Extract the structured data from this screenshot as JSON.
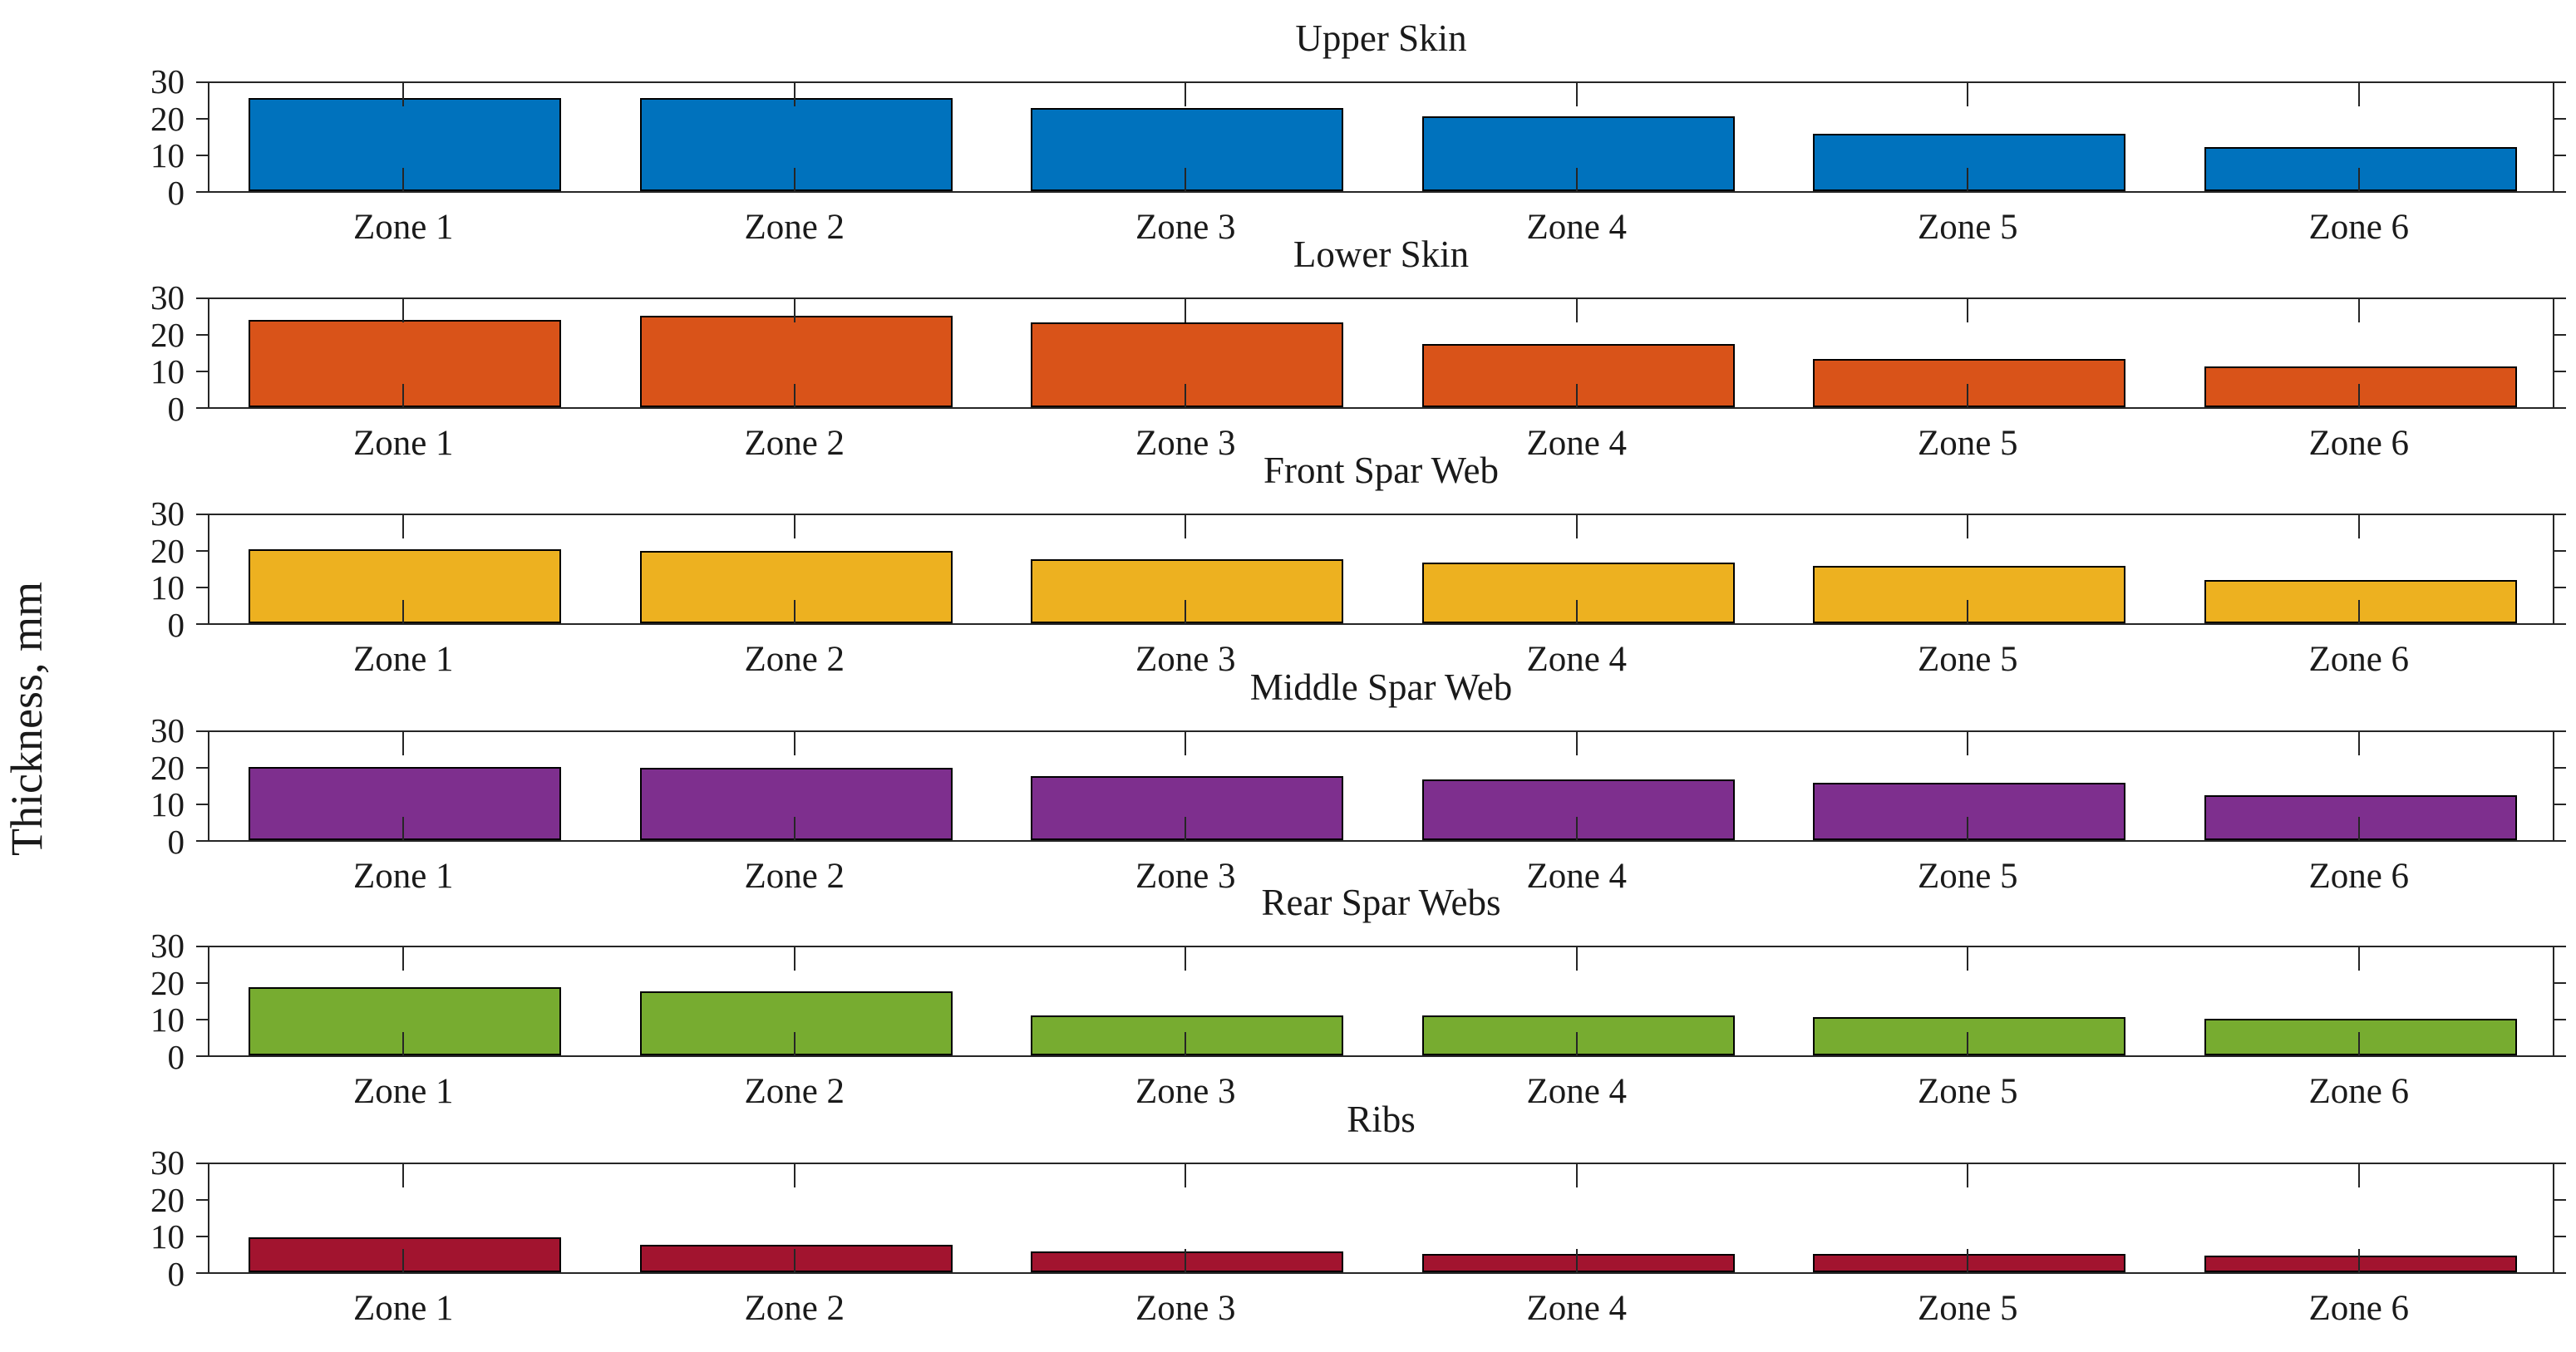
{
  "figure": {
    "ylabel": "Thickness, mm"
  },
  "chart_data": [
    {
      "type": "bar",
      "title": "Upper Skin",
      "categories": [
        "Zone 1",
        "Zone 2",
        "Zone 3",
        "Zone 4",
        "Zone 5",
        "Zone 6"
      ],
      "values": [
        25.5,
        25.5,
        22.7,
        20.4,
        15.6,
        12.0
      ],
      "color": "#0072BD",
      "xlabel": "",
      "ylabel": "",
      "ylim": [
        0,
        30
      ],
      "yticks": [
        0,
        10,
        20,
        30
      ],
      "grid": false,
      "legend": "none"
    },
    {
      "type": "bar",
      "title": "Lower Skin",
      "categories": [
        "Zone 1",
        "Zone 2",
        "Zone 3",
        "Zone 4",
        "Zone 5",
        "Zone 6"
      ],
      "values": [
        23.8,
        25.0,
        23.2,
        17.2,
        13.1,
        11.2
      ],
      "color": "#D95319",
      "xlabel": "",
      "ylabel": "",
      "ylim": [
        0,
        30
      ],
      "yticks": [
        0,
        10,
        20,
        30
      ],
      "grid": false,
      "legend": "none"
    },
    {
      "type": "bar",
      "title": "Front Spar Web",
      "categories": [
        "Zone 1",
        "Zone 2",
        "Zone 3",
        "Zone 4",
        "Zone 5",
        "Zone 6"
      ],
      "values": [
        20.3,
        19.7,
        17.6,
        16.5,
        15.6,
        11.9
      ],
      "color": "#EDB120",
      "xlabel": "",
      "ylabel": "",
      "ylim": [
        0,
        30
      ],
      "yticks": [
        0,
        10,
        20,
        30
      ],
      "grid": false,
      "legend": "none"
    },
    {
      "type": "bar",
      "title": "Middle Spar Web",
      "categories": [
        "Zone 1",
        "Zone 2",
        "Zone 3",
        "Zone 4",
        "Zone 5",
        "Zone 6"
      ],
      "values": [
        20.1,
        19.8,
        17.5,
        16.5,
        15.7,
        12.2
      ],
      "color": "#7E2F8E",
      "xlabel": "",
      "ylabel": "",
      "ylim": [
        0,
        30
      ],
      "yticks": [
        0,
        10,
        20,
        30
      ],
      "grid": false,
      "legend": "none"
    },
    {
      "type": "bar",
      "title": "Rear Spar Webs",
      "categories": [
        "Zone 1",
        "Zone 2",
        "Zone 3",
        "Zone 4",
        "Zone 5",
        "Zone 6"
      ],
      "values": [
        18.6,
        17.4,
        10.9,
        11.0,
        10.5,
        9.9
      ],
      "color": "#77AC30",
      "xlabel": "",
      "ylabel": "",
      "ylim": [
        0,
        30
      ],
      "yticks": [
        0,
        10,
        20,
        30
      ],
      "grid": false,
      "legend": "none"
    },
    {
      "type": "bar",
      "title": "Ribs",
      "categories": [
        "Zone 1",
        "Zone 2",
        "Zone 3",
        "Zone 4",
        "Zone 5",
        "Zone 6"
      ],
      "values": [
        9.6,
        7.5,
        5.6,
        5.1,
        4.9,
        4.5
      ],
      "color": "#A2142F",
      "xlabel": "",
      "ylabel": "",
      "ylim": [
        0,
        30
      ],
      "yticks": [
        0,
        10,
        20,
        30
      ],
      "grid": false,
      "legend": "none"
    }
  ]
}
